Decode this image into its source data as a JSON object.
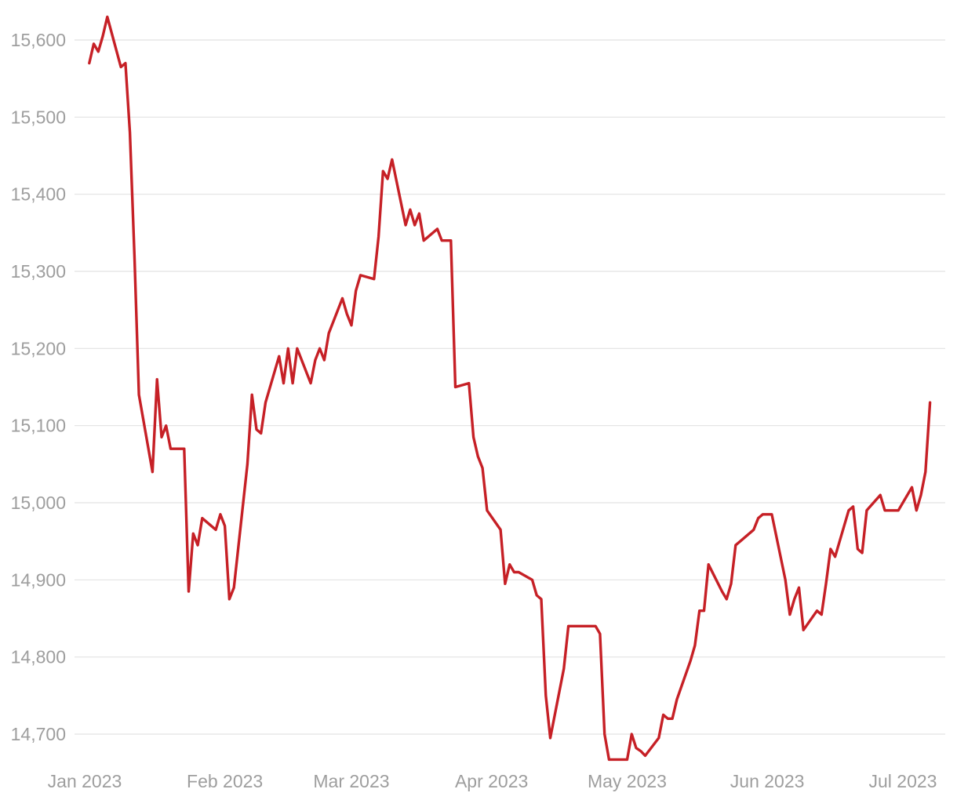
{
  "chart_data": {
    "type": "line",
    "title": "",
    "xlabel": "",
    "ylabel": "",
    "color": "#c62026",
    "grid": "horizontal",
    "x_start": "2023-01-01",
    "x_end": "2023-07-08",
    "ylim": [
      14670,
      15620
    ],
    "yticks": [
      14700,
      14800,
      14900,
      15000,
      15100,
      15200,
      15300,
      15400,
      15500,
      15600
    ],
    "ytick_labels": [
      "14,700",
      "14,800",
      "14,900",
      "15,000",
      "15,100",
      "15,200",
      "15,300",
      "15,400",
      "15,500",
      "15,600"
    ],
    "xticks": [
      "2023-01-01",
      "2023-02-01",
      "2023-03-01",
      "2023-04-01",
      "2023-05-01",
      "2023-06-01",
      "2023-07-01"
    ],
    "xtick_labels": [
      "Jan 2023",
      "Feb 2023",
      "Mar 2023",
      "Apr 2023",
      "May 2023",
      "Jun 2023",
      "Jul 2023"
    ],
    "series": [
      {
        "points": [
          [
            "2023-01-02",
            15570
          ],
          [
            "2023-01-03",
            15595
          ],
          [
            "2023-01-04",
            15585
          ],
          [
            "2023-01-05",
            15605
          ],
          [
            "2023-01-06",
            15630
          ],
          [
            "2023-01-09",
            15565
          ],
          [
            "2023-01-10",
            15570
          ],
          [
            "2023-01-11",
            15480
          ],
          [
            "2023-01-12",
            15320
          ],
          [
            "2023-01-13",
            15140
          ],
          [
            "2023-01-16",
            15040
          ],
          [
            "2023-01-17",
            15160
          ],
          [
            "2023-01-18",
            15085
          ],
          [
            "2023-01-19",
            15100
          ],
          [
            "2023-01-20",
            15070
          ],
          [
            "2023-01-23",
            15070
          ],
          [
            "2023-01-24",
            14885
          ],
          [
            "2023-01-25",
            14960
          ],
          [
            "2023-01-26",
            14945
          ],
          [
            "2023-01-27",
            14980
          ],
          [
            "2023-01-30",
            14965
          ],
          [
            "2023-01-31",
            14985
          ],
          [
            "2023-02-01",
            14970
          ],
          [
            "2023-02-02",
            14875
          ],
          [
            "2023-02-03",
            14890
          ],
          [
            "2023-02-06",
            15050
          ],
          [
            "2023-02-07",
            15140
          ],
          [
            "2023-02-08",
            15095
          ],
          [
            "2023-02-09",
            15090
          ],
          [
            "2023-02-10",
            15130
          ],
          [
            "2023-02-13",
            15190
          ],
          [
            "2023-02-14",
            15155
          ],
          [
            "2023-02-15",
            15200
          ],
          [
            "2023-02-16",
            15155
          ],
          [
            "2023-02-17",
            15200
          ],
          [
            "2023-02-20",
            15155
          ],
          [
            "2023-02-21",
            15185
          ],
          [
            "2023-02-22",
            15200
          ],
          [
            "2023-02-23",
            15185
          ],
          [
            "2023-02-24",
            15220
          ],
          [
            "2023-02-27",
            15265
          ],
          [
            "2023-02-28",
            15245
          ],
          [
            "2023-03-01",
            15230
          ],
          [
            "2023-03-02",
            15275
          ],
          [
            "2023-03-03",
            15295
          ],
          [
            "2023-03-06",
            15290
          ],
          [
            "2023-03-07",
            15345
          ],
          [
            "2023-03-08",
            15430
          ],
          [
            "2023-03-09",
            15420
          ],
          [
            "2023-03-10",
            15445
          ],
          [
            "2023-03-13",
            15360
          ],
          [
            "2023-03-14",
            15380
          ],
          [
            "2023-03-15",
            15360
          ],
          [
            "2023-03-16",
            15375
          ],
          [
            "2023-03-17",
            15340
          ],
          [
            "2023-03-20",
            15355
          ],
          [
            "2023-03-21",
            15340
          ],
          [
            "2023-03-22",
            15340
          ],
          [
            "2023-03-23",
            15340
          ],
          [
            "2023-03-24",
            15150
          ],
          [
            "2023-03-27",
            15155
          ],
          [
            "2023-03-28",
            15085
          ],
          [
            "2023-03-29",
            15060
          ],
          [
            "2023-03-30",
            15045
          ],
          [
            "2023-03-31",
            14990
          ],
          [
            "2023-04-03",
            14965
          ],
          [
            "2023-04-04",
            14895
          ],
          [
            "2023-04-05",
            14920
          ],
          [
            "2023-04-06",
            14910
          ],
          [
            "2023-04-07",
            14910
          ],
          [
            "2023-04-10",
            14900
          ],
          [
            "2023-04-11",
            14880
          ],
          [
            "2023-04-12",
            14875
          ],
          [
            "2023-04-13",
            14750
          ],
          [
            "2023-04-14",
            14695
          ],
          [
            "2023-04-17",
            14785
          ],
          [
            "2023-04-18",
            14840
          ],
          [
            "2023-04-19",
            14840
          ],
          [
            "2023-04-20",
            14840
          ],
          [
            "2023-04-21",
            14840
          ],
          [
            "2023-04-24",
            14840
          ],
          [
            "2023-04-25",
            14830
          ],
          [
            "2023-04-26",
            14700
          ],
          [
            "2023-04-27",
            14667
          ],
          [
            "2023-04-28",
            14667
          ],
          [
            "2023-05-01",
            14667
          ],
          [
            "2023-05-02",
            14700
          ],
          [
            "2023-05-03",
            14682
          ],
          [
            "2023-05-04",
            14678
          ],
          [
            "2023-05-05",
            14672
          ],
          [
            "2023-05-08",
            14695
          ],
          [
            "2023-05-09",
            14725
          ],
          [
            "2023-05-10",
            14720
          ],
          [
            "2023-05-11",
            14720
          ],
          [
            "2023-05-12",
            14745
          ],
          [
            "2023-05-15",
            14795
          ],
          [
            "2023-05-16",
            14815
          ],
          [
            "2023-05-17",
            14860
          ],
          [
            "2023-05-18",
            14860
          ],
          [
            "2023-05-19",
            14920
          ],
          [
            "2023-05-22",
            14885
          ],
          [
            "2023-05-23",
            14875
          ],
          [
            "2023-05-24",
            14895
          ],
          [
            "2023-05-25",
            14945
          ],
          [
            "2023-05-26",
            14950
          ],
          [
            "2023-05-29",
            14965
          ],
          [
            "2023-05-30",
            14980
          ],
          [
            "2023-05-31",
            14985
          ],
          [
            "2023-06-01",
            14985
          ],
          [
            "2023-06-02",
            14985
          ],
          [
            "2023-06-05",
            14900
          ],
          [
            "2023-06-06",
            14855
          ],
          [
            "2023-06-07",
            14875
          ],
          [
            "2023-06-08",
            14890
          ],
          [
            "2023-06-09",
            14835
          ],
          [
            "2023-06-12",
            14860
          ],
          [
            "2023-06-13",
            14855
          ],
          [
            "2023-06-14",
            14895
          ],
          [
            "2023-06-15",
            14940
          ],
          [
            "2023-06-16",
            14930
          ],
          [
            "2023-06-19",
            14990
          ],
          [
            "2023-06-20",
            14995
          ],
          [
            "2023-06-21",
            14940
          ],
          [
            "2023-06-22",
            14935
          ],
          [
            "2023-06-23",
            14990
          ],
          [
            "2023-06-26",
            15010
          ],
          [
            "2023-06-27",
            14990
          ],
          [
            "2023-06-28",
            14990
          ],
          [
            "2023-06-29",
            14990
          ],
          [
            "2023-06-30",
            14990
          ],
          [
            "2023-07-03",
            15020
          ],
          [
            "2023-07-04",
            14990
          ],
          [
            "2023-07-05",
            15010
          ],
          [
            "2023-07-06",
            15040
          ],
          [
            "2023-07-07",
            15130
          ]
        ]
      }
    ]
  }
}
